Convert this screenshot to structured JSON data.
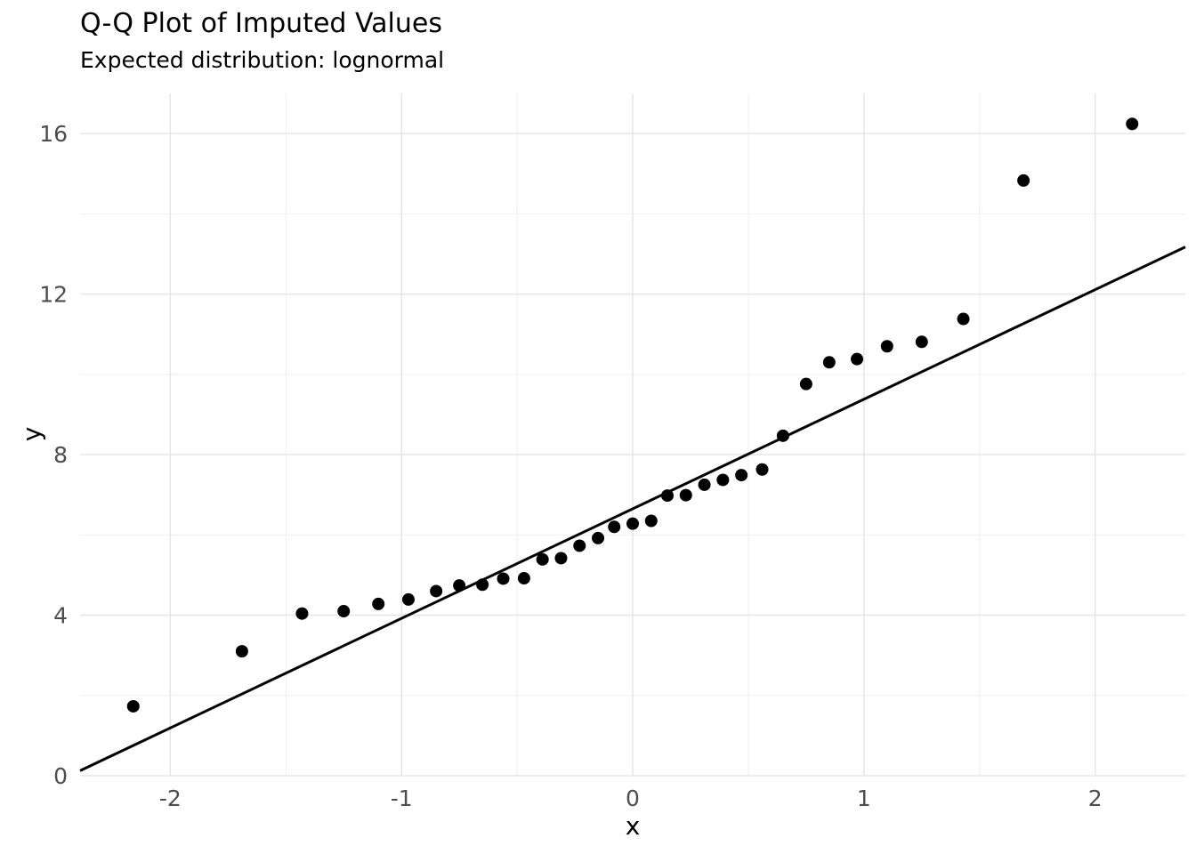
{
  "chart_data": {
    "type": "scatter",
    "title": "Q-Q Plot of Imputed Values",
    "subtitle": "Expected distribution: lognormal",
    "xlabel": "x",
    "ylabel": "y",
    "xlim": [
      -2.39,
      2.39
    ],
    "ylim": [
      0,
      17
    ],
    "x_ticks": [
      -2,
      -1,
      0,
      1,
      2
    ],
    "y_ticks": [
      0,
      4,
      8,
      12,
      16
    ],
    "x_minor_gridlines": [
      -1.5,
      -0.5,
      0.5,
      1.5
    ],
    "y_minor_gridlines": [
      2,
      6,
      10,
      14
    ],
    "grid": "major+minor",
    "legend_position": "none",
    "points": {
      "x": [
        -2.16,
        -1.69,
        -1.43,
        -1.25,
        -1.1,
        -0.97,
        -0.85,
        -0.75,
        -0.65,
        -0.56,
        -0.47,
        -0.39,
        -0.31,
        -0.23,
        -0.15,
        -0.08,
        0.0,
        0.08,
        0.15,
        0.23,
        0.31,
        0.39,
        0.47,
        0.56,
        0.65,
        0.75,
        0.85,
        0.97,
        1.1,
        1.25,
        1.43,
        1.69,
        2.16
      ],
      "y": [
        1.73,
        3.1,
        4.04,
        4.1,
        4.28,
        4.39,
        4.6,
        4.74,
        4.76,
        4.91,
        4.92,
        5.39,
        5.42,
        5.73,
        5.92,
        6.2,
        6.28,
        6.35,
        6.98,
        6.99,
        7.25,
        7.37,
        7.49,
        7.63,
        8.47,
        9.76,
        10.3,
        10.38,
        10.7,
        10.81,
        11.38,
        14.83,
        16.24
      ]
    },
    "reference_line": {
      "slope": 2.73,
      "intercept": 6.65
    },
    "colors": {
      "point": "#000000",
      "line": "#000000",
      "grid_major": "#e6e6e6",
      "grid_minor": "#efefef",
      "axis_text": "#4d4d4d",
      "title_text": "#000000",
      "background": "#ffffff"
    }
  }
}
